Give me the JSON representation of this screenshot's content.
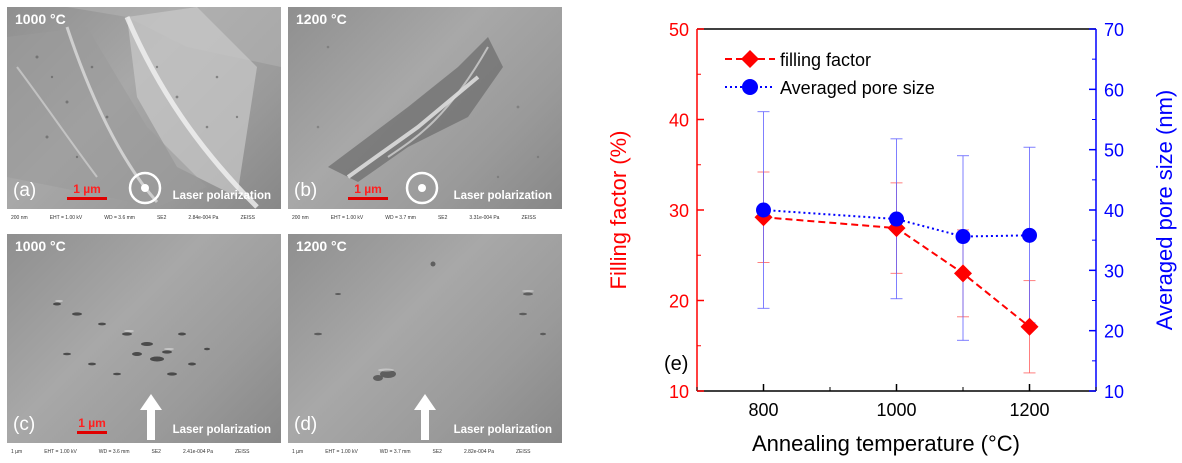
{
  "panels": [
    {
      "id": "a",
      "label": "(a)",
      "temperature": "1000 °C",
      "scale_bar": "1 µm",
      "polarization_label": "Laser polarization",
      "polarization_icon": "circle-dot-icon",
      "footer": [
        "200 nm",
        "EHT = 1.00 kV",
        "WD = 3.6 mm",
        "SE2",
        "2.84e-004 Pa",
        "ZEISS"
      ]
    },
    {
      "id": "b",
      "label": "(b)",
      "temperature": "1200 °C",
      "scale_bar": "1 µm",
      "polarization_label": "Laser polarization",
      "polarization_icon": "circle-dot-icon",
      "footer": [
        "200 nm",
        "EHT = 1.00 kV",
        "WD = 3.7 mm",
        "SE2",
        "3.31e-004 Pa",
        "ZEISS"
      ]
    },
    {
      "id": "c",
      "label": "(c)",
      "temperature": "1000 °C",
      "scale_bar": "1 µm",
      "polarization_label": "Laser polarization",
      "polarization_icon": "up-arrow-icon",
      "footer": [
        "1 µm",
        "EHT = 1.00 kV",
        "WD = 3.6 mm",
        "SE2",
        "2.41e-004 Pa",
        "ZEISS"
      ]
    },
    {
      "id": "d",
      "label": "(d)",
      "temperature": "1200 °C",
      "scale_bar": "",
      "polarization_label": "Laser polarization",
      "polarization_icon": "up-arrow-icon",
      "footer": [
        "1 µm",
        "EHT = 1.00 kV",
        "WD = 3.7 mm",
        "SE2",
        "2.82e-004 Pa",
        "ZEISS"
      ]
    }
  ],
  "chart_data": {
    "type": "line",
    "panel_label": "(e)",
    "xlabel": "Annealing temperature (°C)",
    "ylabel_left": "Filling factor (%)",
    "ylabel_right": "Averaged pore size (nm)",
    "xlim": [
      700,
      1300
    ],
    "ylim_left": [
      10,
      50
    ],
    "ylim_right": [
      10,
      70
    ],
    "x_ticks": [
      800,
      1000,
      1200
    ],
    "y_ticks_left": [
      10,
      20,
      30,
      40,
      50
    ],
    "y_ticks_right": [
      10,
      20,
      30,
      40,
      50,
      60,
      70
    ],
    "grid": false,
    "legend_position": "top-center",
    "series": [
      {
        "name": "filling factor",
        "axis": "left",
        "color": "#ff0000",
        "marker": "diamond",
        "line": "dashed",
        "x": [
          800,
          1000,
          1100,
          1200
        ],
        "y": [
          29.2,
          28.0,
          23.0,
          17.1
        ],
        "err_low": [
          24.2,
          23.0,
          18.2,
          12.0
        ],
        "err_high": [
          34.2,
          33.0,
          27.8,
          22.2
        ]
      },
      {
        "name": "Averaged pore size",
        "axis": "right",
        "color": "#0000ff",
        "marker": "circle",
        "line": "dotted",
        "x": [
          800,
          1000,
          1100,
          1200
        ],
        "y": [
          40.0,
          38.5,
          35.6,
          35.8
        ],
        "err_low": [
          23.7,
          25.3,
          18.4,
          21.3
        ],
        "err_high": [
          56.3,
          51.8,
          49.0,
          50.4
        ]
      }
    ]
  }
}
